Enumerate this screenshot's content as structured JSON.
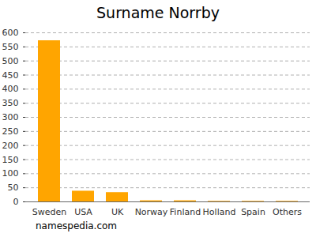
{
  "chart_data": {
    "type": "bar",
    "title": "Surname Norrby",
    "categories": [
      "Sweden",
      "USA",
      "UK",
      "Norway",
      "Finland",
      "Holland",
      "Spain",
      "Others"
    ],
    "values": [
      572,
      38,
      33,
      4,
      4,
      2,
      2,
      2
    ],
    "color": "#ffa500",
    "ylim": [
      0,
      600
    ],
    "yticks": [
      0,
      50,
      100,
      150,
      200,
      250,
      300,
      350,
      400,
      450,
      500,
      550,
      600
    ],
    "grid": true,
    "caption": "namespedia.com"
  }
}
